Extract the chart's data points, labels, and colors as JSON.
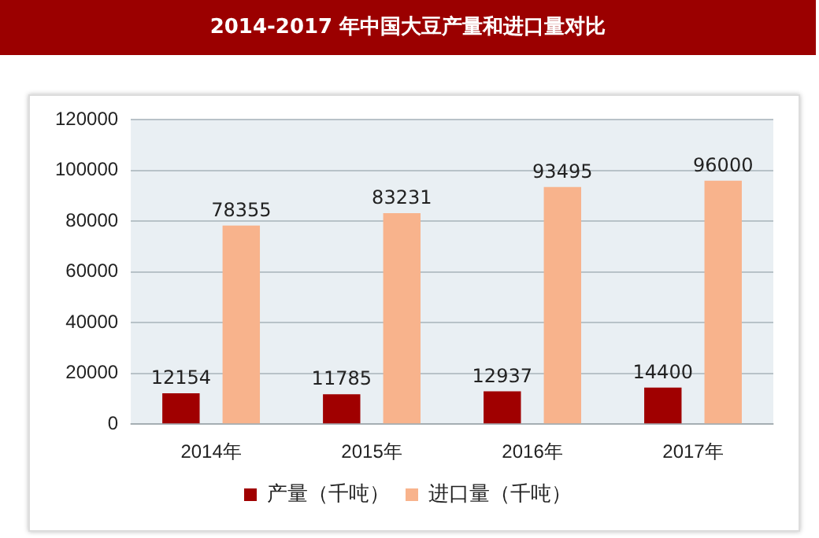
{
  "chart_data": {
    "type": "bar",
    "title": "2014-2017 年中国大豆产量和进口量对比",
    "categories": [
      "2014年",
      "2015年",
      "2016年",
      "2017年"
    ],
    "series": [
      {
        "name": "产量（千吨）",
        "color": "#a00000",
        "values": [
          12154,
          11785,
          12937,
          14400
        ]
      },
      {
        "name": "进口量（千吨）",
        "color": "#f8b38c",
        "values": [
          78355,
          83231,
          93495,
          96000
        ]
      }
    ],
    "ylim": [
      0,
      120000
    ],
    "yticks": [
      0,
      20000,
      40000,
      60000,
      80000,
      100000,
      120000
    ],
    "grid": "y",
    "legend": "bottom",
    "data_labels": true
  }
}
